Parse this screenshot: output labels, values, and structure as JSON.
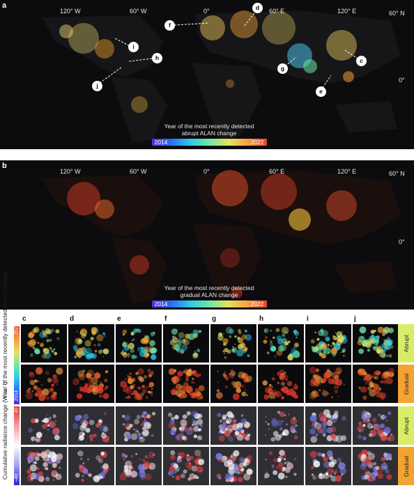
{
  "panel_a": {
    "letter": "a",
    "lon_ticks": [
      "120° W",
      "60° W",
      "0°",
      "60° E",
      "120° E"
    ],
    "lat_ticks": [
      "60° N",
      "0°"
    ],
    "legend_title_line1": "Year of the most recently detected",
    "legend_title_line2": "abrupt ALAN change",
    "legend_min": "2014",
    "legend_max": "2022",
    "callouts": [
      "d",
      "f",
      "i",
      "h",
      "c",
      "g",
      "j",
      "e"
    ]
  },
  "panel_b": {
    "letter": "b",
    "lon_ticks": [
      "120° W",
      "60° W",
      "0°",
      "60° E",
      "120° E"
    ],
    "lat_ticks": [
      "60° N",
      "0°"
    ],
    "legend_title_line1": "Year of the most recently detected",
    "legend_title_line2": "gradual ALAN change",
    "legend_min": "2014",
    "legend_max": "2022"
  },
  "grid": {
    "columns": [
      "c",
      "d",
      "e",
      "f",
      "g",
      "h",
      "i",
      "j"
    ],
    "row_label_year": "Year of the most recently detected ALAN change",
    "row_label_radiance": "Cumulative radiance change (W sr⁻¹)",
    "year_bar_top": "2022",
    "year_bar_bottom": "2014",
    "rad_bar_top": "40",
    "rad_bar_bottom": "−40",
    "tags": [
      "Abrupt",
      "Gradual",
      "Abrupt",
      "Gradual"
    ]
  },
  "colors": {
    "map_background": "#0c0c0e",
    "abrupt_tag": "#d9ec6a",
    "gradual_tag": "#f2a332"
  }
}
